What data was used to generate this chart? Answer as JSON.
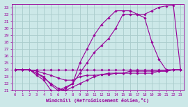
{
  "xlabel": "Windchill (Refroidissement éolien,°C)",
  "background_color": "#cce8e8",
  "grid_color": "#aacccc",
  "line_color": "#990099",
  "xlim": [
    -0.5,
    23.5
  ],
  "ylim": [
    21,
    33.5
  ],
  "ytick_min": 21,
  "ytick_max": 33,
  "xticks": [
    0,
    1,
    2,
    3,
    4,
    5,
    6,
    7,
    8,
    9,
    10,
    11,
    12,
    13,
    14,
    15,
    16,
    17,
    18,
    19,
    20,
    21,
    22,
    23
  ],
  "series": [
    {
      "x": [
        0,
        1,
        2,
        3,
        4,
        5,
        6,
        7,
        8,
        9,
        10,
        11,
        12,
        13,
        14,
        15,
        16,
        17,
        18,
        19,
        20,
        21,
        22,
        23
      ],
      "y": [
        24,
        24,
        24,
        24,
        24,
        24,
        24,
        24,
        24,
        24,
        24,
        24,
        24,
        24,
        24,
        24,
        24,
        24,
        24,
        24,
        24,
        24,
        24,
        24
      ]
    },
    {
      "x": [
        0,
        1,
        2,
        3,
        4,
        5,
        6,
        7,
        8,
        9,
        10,
        11,
        12,
        13,
        14,
        15,
        16,
        17,
        18,
        19,
        20,
        21,
        22,
        23
      ],
      "y": [
        24,
        24,
        24,
        23.8,
        23.5,
        23.2,
        22.8,
        22.5,
        22.5,
        23.0,
        23.2,
        23.2,
        23.3,
        23.3,
        23.5,
        23.5,
        23.5,
        23.5,
        23.5,
        23.5,
        23.8,
        23.8,
        24,
        24
      ]
    },
    {
      "x": [
        0,
        1,
        2,
        3,
        4,
        5,
        6,
        7,
        8,
        9,
        10,
        11,
        12,
        13,
        14,
        15,
        16,
        17,
        18,
        19,
        20,
        21,
        22,
        23
      ],
      "y": [
        24,
        24,
        24,
        23.5,
        22.8,
        22.0,
        21.3,
        21.0,
        21.5,
        22.0,
        22.5,
        23.0,
        23.3,
        23.5,
        23.5,
        23.5,
        23.8,
        23.8,
        23.8,
        23.8,
        23.8,
        23.8,
        24,
        24
      ]
    },
    {
      "x": [
        0,
        1,
        2,
        3,
        4,
        5,
        6,
        7,
        8,
        9,
        10,
        11,
        12,
        13,
        14,
        15,
        16,
        17,
        18,
        19,
        20,
        21,
        22,
        23
      ],
      "y": [
        24,
        24,
        24,
        23.5,
        23.0,
        21.8,
        21.0,
        21.5,
        22.0,
        23.5,
        25.0,
        26.5,
        27.5,
        28.5,
        30.0,
        32.0,
        32.0,
        32.0,
        31.5,
        28.0,
        25.5,
        24.0,
        24.0,
        24
      ]
    },
    {
      "x": [
        0,
        1,
        2,
        3,
        4,
        5,
        6,
        7,
        8,
        9,
        10,
        11,
        12,
        13,
        14,
        15,
        16,
        17,
        18,
        19,
        20,
        21,
        22,
        23
      ],
      "y": [
        24,
        24,
        24,
        23.2,
        22.5,
        21.0,
        20.8,
        21.3,
        22.0,
        25.0,
        27.0,
        29.0,
        30.5,
        31.5,
        32.5,
        32.5,
        32.5,
        32.0,
        32.0,
        32.5,
        33.0,
        33.2,
        33.3,
        24
      ]
    }
  ]
}
